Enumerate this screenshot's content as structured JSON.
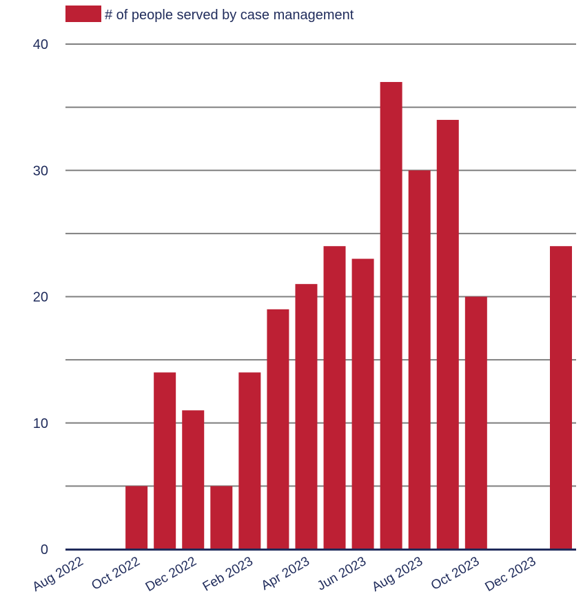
{
  "chart_data": {
    "type": "bar",
    "title": "",
    "xlabel": "",
    "ylabel": "",
    "legend": {
      "position": "top-left",
      "label": "# of people served by case management"
    },
    "categories": [
      "Aug 2022",
      "Sep 2022",
      "Oct 2022",
      "Nov 2022",
      "Dec 2022",
      "Jan 2023",
      "Feb 2023",
      "Mar 2023",
      "Apr 2023",
      "May 2023",
      "Jun 2023",
      "Jul 2023",
      "Aug 2023",
      "Sep 2023",
      "Oct 2023",
      "Nov 2023",
      "Dec 2023",
      "Jan 2024"
    ],
    "x_tick_labels": [
      "Aug 2022",
      "Oct 2022",
      "Dec 2022",
      "Feb 2023",
      "Apr 2023",
      "Jun 2023",
      "Aug 2023",
      "Oct 2023",
      "Dec 2023"
    ],
    "series": [
      {
        "name": "# of people served by case management",
        "values": [
          0,
          0,
          5,
          14,
          11,
          5,
          14,
          19,
          21,
          24,
          23,
          37,
          30,
          34,
          20,
          0,
          0,
          24
        ],
        "color": "#bd2034"
      }
    ],
    "ylim": [
      0,
      40
    ],
    "y_ticks": [
      "0",
      "10",
      "20",
      "30",
      "40"
    ],
    "grid": true
  },
  "colors": {
    "bar": "#bd2034",
    "gridline": "#7f7f7f",
    "axis": "#1f2b5b",
    "text": "#1f2b5b"
  }
}
